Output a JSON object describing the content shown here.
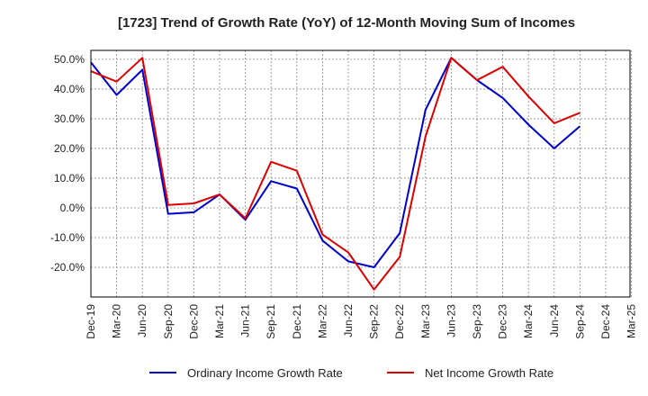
{
  "chart_data": {
    "type": "line",
    "title": "[1723]  Trend of Growth Rate (YoY) of 12-Month Moving Sum of Incomes",
    "xlabel": "",
    "ylabel": "",
    "ylim": [
      -30,
      53
    ],
    "y_ticks": [
      50,
      40,
      30,
      20,
      10,
      0,
      -10,
      -20
    ],
    "y_tick_labels": [
      "50.0%",
      "40.0%",
      "30.0%",
      "20.0%",
      "10.0%",
      "0.0%",
      "-10.0%",
      "-20.0%"
    ],
    "x_tick_labels": [
      "Dec-19",
      "Mar-20",
      "Jun-20",
      "Sep-20",
      "Dec-20",
      "Mar-21",
      "Jun-21",
      "Sep-21",
      "Dec-21",
      "Mar-22",
      "Jun-22",
      "Sep-22",
      "Dec-22",
      "Mar-23",
      "Jun-23",
      "Sep-23",
      "Dec-23",
      "Mar-24",
      "Jun-24",
      "Sep-24",
      "Dec-24",
      "Mar-25"
    ],
    "grid": true,
    "legend_position": "bottom",
    "series": [
      {
        "name": "Ordinary Income Growth Rate",
        "color": "#0000cc",
        "values": [
          49,
          38,
          46.5,
          -2,
          -1.5,
          4.5,
          -4,
          9,
          6.5,
          -11,
          -18,
          -20,
          -8.5,
          33,
          50.5,
          43,
          37,
          28,
          20,
          27.5
        ]
      },
      {
        "name": "Net Income Growth Rate",
        "color": "#dd0000",
        "values": [
          46,
          42.5,
          50.5,
          1,
          1.5,
          4.5,
          -3.5,
          15.5,
          12.5,
          -9,
          -15,
          -27.5,
          -16.5,
          24,
          50.5,
          43,
          47.5,
          37.5,
          28.5,
          32
        ]
      }
    ]
  }
}
